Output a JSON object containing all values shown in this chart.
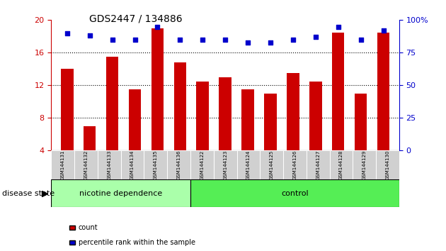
{
  "title": "GDS2447 / 134886",
  "samples": [
    "GSM144131",
    "GSM144132",
    "GSM144133",
    "GSM144134",
    "GSM144135",
    "GSM144136",
    "GSM144122",
    "GSM144123",
    "GSM144124",
    "GSM144125",
    "GSM144126",
    "GSM144127",
    "GSM144128",
    "GSM144129",
    "GSM144130"
  ],
  "counts": [
    14.0,
    7.0,
    15.5,
    11.5,
    19.0,
    14.8,
    12.5,
    13.0,
    11.5,
    11.0,
    13.5,
    12.5,
    18.5,
    11.0,
    18.5
  ],
  "percentile_ranks": [
    90,
    88,
    85,
    85,
    95,
    85,
    85,
    85,
    83,
    83,
    85,
    87,
    95,
    85,
    92
  ],
  "bar_color": "#cc0000",
  "dot_color": "#0000cc",
  "ylim_left": [
    4,
    20
  ],
  "ylim_right": [
    0,
    100
  ],
  "yticks_left": [
    4,
    8,
    12,
    16,
    20
  ],
  "yticks_right": [
    0,
    25,
    50,
    75,
    100
  ],
  "grid_yticks": [
    8,
    12,
    16
  ],
  "groups": [
    {
      "label": "nicotine dependence",
      "start": 0,
      "end": 6,
      "color": "#aaffaa"
    },
    {
      "label": "control",
      "start": 6,
      "end": 15,
      "color": "#55ee55"
    }
  ],
  "disease_state_label": "disease state",
  "legend_count_label": "count",
  "legend_pct_label": "percentile rank within the sample",
  "background_color": "#ffffff",
  "tick_color_left": "#cc0000",
  "tick_color_right": "#0000cc"
}
